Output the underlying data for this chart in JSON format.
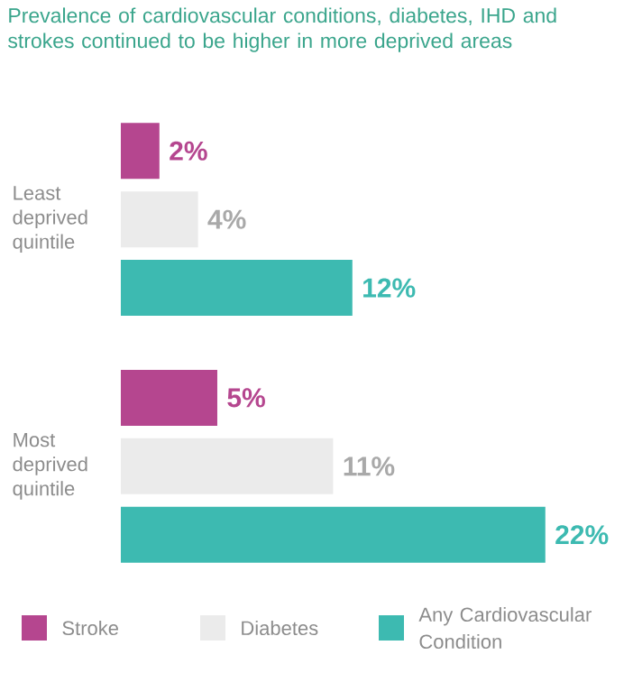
{
  "chart_data": {
    "type": "bar",
    "orientation": "horizontal",
    "title": "Prevalence of cardiovascular conditions, diabetes, IHD and strokes continued to be higher in more deprived areas",
    "categories": [
      "Least deprived quintile",
      "Most deprived quintile"
    ],
    "series": [
      {
        "name": "Stroke",
        "color": "#b5468f",
        "values": [
          2,
          5
        ],
        "value_labels": [
          "2%",
          "5%"
        ]
      },
      {
        "name": "Diabetes",
        "color": "#ebebeb",
        "values": [
          4,
          11
        ],
        "value_labels": [
          "4%",
          "11%"
        ]
      },
      {
        "name": "Any Cardiovascular Condition",
        "color": "#3dbab1",
        "values": [
          12,
          22
        ],
        "value_labels": [
          "12%",
          "22%"
        ]
      }
    ],
    "legend": "bottom",
    "tick_labels": "y"
  }
}
